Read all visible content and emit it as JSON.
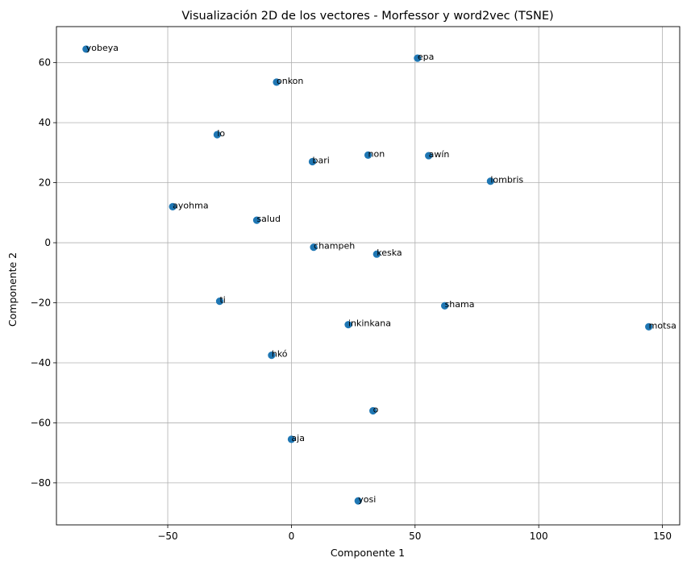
{
  "chart_data": {
    "type": "scatter",
    "title": "Visualización 2D de los vectores - Morfessor y word2vec (TSNE)",
    "xlabel": "Componente 1",
    "ylabel": "Componente 2",
    "xlim": [
      -95,
      157
    ],
    "ylim": [
      -94,
      72
    ],
    "xticks": [
      -50,
      0,
      50,
      100,
      150
    ],
    "yticks": [
      -80,
      -60,
      -40,
      -20,
      0,
      20,
      40,
      60
    ],
    "grid": true,
    "marker_color": "#1f77b4",
    "points": [
      {
        "label": "yobeya",
        "x": -83,
        "y": 64.5
      },
      {
        "label": "epa",
        "x": 51,
        "y": 61.5
      },
      {
        "label": "onkon",
        "x": -6,
        "y": 53.5
      },
      {
        "label": "lo",
        "x": -30,
        "y": 36
      },
      {
        "label": "non",
        "x": 31,
        "y": 29.2
      },
      {
        "label": "awín",
        "x": 55.5,
        "y": 29
      },
      {
        "label": "bari",
        "x": 8.5,
        "y": 27
      },
      {
        "label": "lombris",
        "x": 80.5,
        "y": 20.5
      },
      {
        "label": "ayohma",
        "x": -48,
        "y": 12
      },
      {
        "label": "salud",
        "x": -14,
        "y": 7.5
      },
      {
        "label": "champeh",
        "x": 9,
        "y": -1.5
      },
      {
        "label": "keska",
        "x": 34.5,
        "y": -3.8
      },
      {
        "label": "ti",
        "x": -29,
        "y": -19.5
      },
      {
        "label": "shama",
        "x": 62,
        "y": -21
      },
      {
        "label": "inkinkana",
        "x": 23,
        "y": -27.3
      },
      {
        "label": "motsa",
        "x": 144.5,
        "y": -28
      },
      {
        "label": "hkó",
        "x": -8,
        "y": -37.5
      },
      {
        "label": "o",
        "x": 33,
        "y": -56
      },
      {
        "label": "aja",
        "x": 0,
        "y": -65.5
      },
      {
        "label": "yosi",
        "x": 27,
        "y": -86
      }
    ]
  }
}
